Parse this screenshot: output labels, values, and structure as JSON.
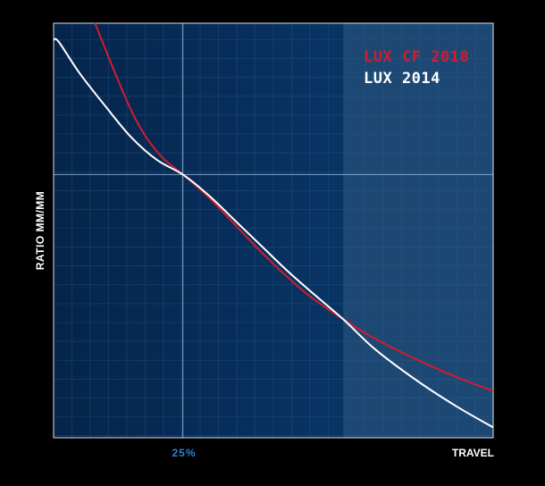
{
  "chart_data": {
    "type": "line",
    "ylabel": "RATIO MM/MM",
    "xlabel": "TRAVEL",
    "x_ticks": [
      {
        "x": 25,
        "label": "25%"
      }
    ],
    "xlim": [
      0,
      85
    ],
    "ylim": [
      0,
      100
    ],
    "grid": true,
    "legend_position": "top-right",
    "shaded_region": {
      "x_from": 56,
      "x_to": 85
    },
    "series": [
      {
        "name": "LUX CF 2018",
        "color": "#d11c2f",
        "points": [
          [
            8,
            100
          ],
          [
            15,
            79
          ],
          [
            20,
            69
          ],
          [
            25,
            63.5
          ],
          [
            30,
            58
          ],
          [
            35,
            51.5
          ],
          [
            40,
            45
          ],
          [
            45,
            39
          ],
          [
            50,
            33.7
          ],
          [
            56,
            28.6
          ],
          [
            62,
            24
          ],
          [
            70,
            19
          ],
          [
            78,
            14.6
          ],
          [
            85,
            11.3
          ]
        ]
      },
      {
        "name": "LUX 2014",
        "color": "#ffffff",
        "points": [
          [
            0,
            96
          ],
          [
            1,
            95.5
          ],
          [
            5,
            88
          ],
          [
            10,
            80
          ],
          [
            15,
            72.5
          ],
          [
            20,
            67
          ],
          [
            25,
            63.5
          ],
          [
            30,
            58.5
          ],
          [
            35,
            52.5
          ],
          [
            40,
            46.5
          ],
          [
            45,
            40.5
          ],
          [
            50,
            35
          ],
          [
            56,
            28.6
          ],
          [
            62,
            21.5
          ],
          [
            70,
            14
          ],
          [
            78,
            7.5
          ],
          [
            85,
            2.5
          ]
        ]
      }
    ]
  }
}
